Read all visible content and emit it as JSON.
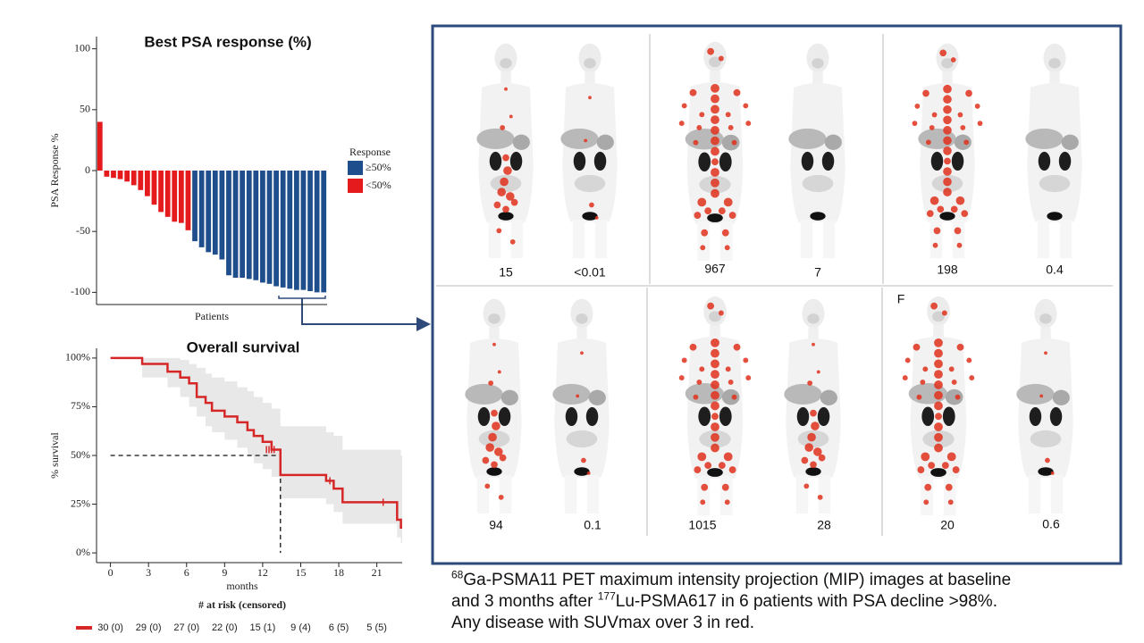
{
  "chart_data": [
    {
      "type": "bar",
      "title": "Best PSA response (%)",
      "y_label": "PSA Response %",
      "x_label": "Patients",
      "categories": [
        null,
        null,
        null,
        null,
        null,
        null,
        null,
        null,
        null,
        null,
        null,
        null,
        null,
        null,
        null,
        null,
        null,
        null,
        null,
        null,
        null,
        null,
        null,
        null,
        null,
        null,
        null,
        null,
        null,
        null,
        null,
        null,
        null,
        null
      ],
      "legend_title": "Response",
      "series": [
        {
          "name": "≥50%",
          "color": "#1f4e8c",
          "values": [
            null,
            null,
            null,
            null,
            null,
            null,
            null,
            null,
            null,
            null,
            null,
            null,
            null,
            null,
            -58,
            -63,
            -67,
            -69,
            -73,
            -86,
            -88,
            -88,
            -89,
            -90,
            -92,
            -93,
            -95,
            -96,
            -97,
            -98,
            -98,
            -99,
            -100,
            -100
          ]
        },
        {
          "name": "<50%",
          "color": "#e41a1c",
          "values": [
            40,
            -5,
            -6,
            -7,
            -9,
            -12,
            -16,
            -21,
            -28,
            -34,
            -38,
            -42,
            -43,
            -49,
            null,
            null,
            null,
            null,
            null,
            null,
            null,
            null,
            null,
            null,
            null,
            null,
            null,
            null,
            null,
            null,
            null,
            null,
            null,
            null
          ]
        }
      ],
      "ylim": [
        -110,
        110
      ],
      "yticks": [
        -100,
        -50,
        0,
        50,
        100
      ]
    },
    {
      "type": "line",
      "title": "Overall survival",
      "x_label": "months",
      "y_label": "% survival",
      "step": true,
      "x": [
        0,
        2.5,
        4.5,
        5.5,
        6.2,
        6.8,
        7.5,
        8,
        9,
        10,
        10.8,
        11.3,
        12,
        12.7,
        13.4,
        17,
        17.6,
        18.3,
        22.6,
        22.9,
        23
      ],
      "values": [
        100,
        97,
        93,
        90,
        87,
        80,
        77,
        73,
        70,
        67,
        63,
        60,
        57,
        53,
        40,
        37,
        33,
        26,
        17,
        13,
        13
      ],
      "color": "#d62728",
      "ci_upper": [
        100,
        100,
        100,
        99,
        97,
        95,
        92,
        90,
        88,
        85,
        83,
        80,
        77,
        74,
        65,
        62,
        60,
        53,
        53,
        50,
        50
      ],
      "ci_lower": [
        100,
        90,
        85,
        80,
        75,
        70,
        65,
        62,
        58,
        54,
        50,
        46,
        43,
        39,
        28,
        25,
        21,
        15,
        8,
        5,
        4
      ],
      "ci_color": "#e8e8e8",
      "censored": {
        "x": [
          12.3,
          12.5,
          12.7,
          12.9,
          17.3,
          21.5
        ],
        "values": [
          53,
          53,
          53,
          53,
          37,
          26
        ]
      },
      "median": {
        "x": 13.4,
        "y": 50
      },
      "xlim": [
        -1.1,
        23
      ],
      "xticks": [
        0,
        3,
        6,
        9,
        12,
        15,
        18,
        21
      ],
      "ylim": [
        -5,
        105
      ],
      "yticks": [
        {
          "value": 0,
          "label": "0%"
        },
        {
          "value": 25,
          "label": "25%"
        },
        {
          "value": 50,
          "label": "50%"
        },
        {
          "value": 75,
          "label": "75%"
        },
        {
          "value": 100,
          "label": "100%"
        }
      ],
      "risk_table": {
        "title": "# at risk (censored)",
        "labels": [
          "30 (0)",
          "29 (0)",
          "27 (0)",
          "22 (0)",
          "15 (1)",
          "9 (4)",
          "6 (5)",
          "5 (5)"
        ]
      }
    }
  ],
  "figure": {
    "panel_letter": "F",
    "image_labels": [
      "15",
      "<0.01",
      "967",
      "7",
      "198",
      "0.4",
      "94",
      "0.1",
      "1015",
      "28",
      "20",
      "0.6"
    ],
    "caption": [
      "68",
      "Ga-PSMA11 PET maximum intensity projection (MIP) images at baseline",
      "and 3 months after ",
      "177",
      "Lu-PSMA617 in 6 patients with PSA decline >98%.",
      "Any disease with SUVmax over 3 in red."
    ]
  }
}
